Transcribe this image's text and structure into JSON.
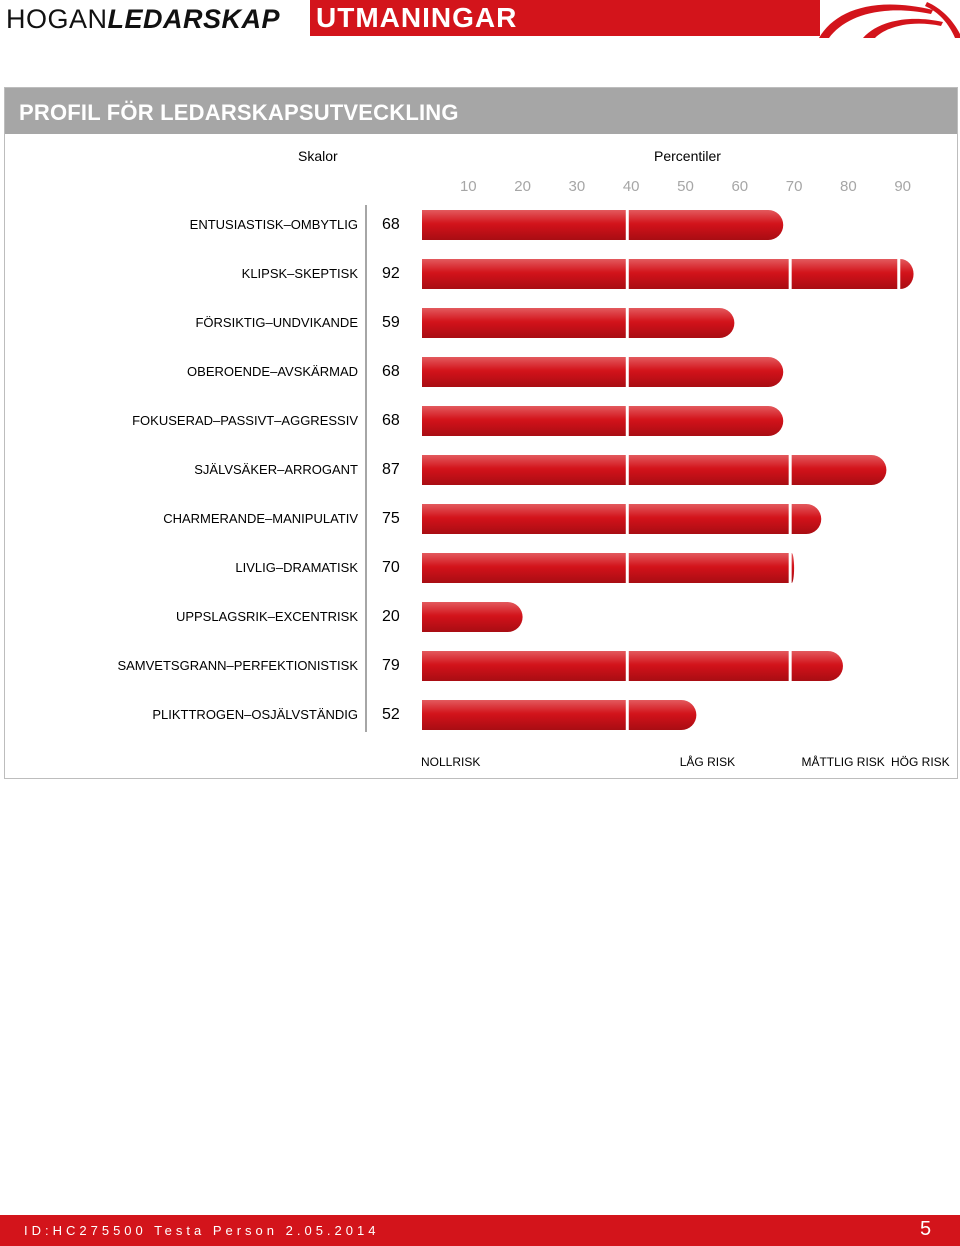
{
  "header": {
    "brand_regular": "HOGAN",
    "brand_bold": "LEDARSKAP",
    "product": "UTMANINGAR",
    "accent_color": "#d3141b"
  },
  "panel": {
    "title": "PROFIL FÖR LEDARSKAPSUTVECKLING",
    "col_scales": "Skalor",
    "col_percentiles": "Percentiler"
  },
  "chart_data": {
    "type": "bar",
    "orientation": "horizontal",
    "x_ticks": [
      "10",
      "20",
      "30",
      "40",
      "50",
      "60",
      "70",
      "80",
      "90"
    ],
    "xlim": [
      0,
      100
    ],
    "categories": [
      "ENTUSIASTISK–OMBYTLIG",
      "KLIPSK–SKEPTISK",
      "FÖRSIKTIG–UNDVIKANDE",
      "OBEROENDE–AVSKÄRMAD",
      "FOKUSERAD–PASSIVT–AGGRESSIV",
      "SJÄLVSÄKER–ARROGANT",
      "CHARMERANDE–MANIPULATIV",
      "LIVLIG–DRAMATISK",
      "UPPSLAGSRIK–EXCENTRISK",
      "SAMVETSGRANN–PERFEKTIONISTISK",
      "PLIKTTROGEN–OSJÄLVSTÄNDIG"
    ],
    "values": [
      68,
      92,
      59,
      68,
      68,
      87,
      75,
      70,
      20,
      79,
      52
    ],
    "risk_bands": [
      "NOLLRISK",
      "LÅG RISK",
      "MÅTTLIG RISK",
      "HÖG RISK"
    ],
    "risk_band_bounds": [
      0,
      39,
      69,
      89,
      100
    ],
    "bar_color": "#d3141b",
    "tick_color": "#a6a6a6",
    "grid": false,
    "legend": "none"
  },
  "footer": {
    "id_text": "ID:HC275500 Testa Person 2.05.2014",
    "page": "5"
  }
}
